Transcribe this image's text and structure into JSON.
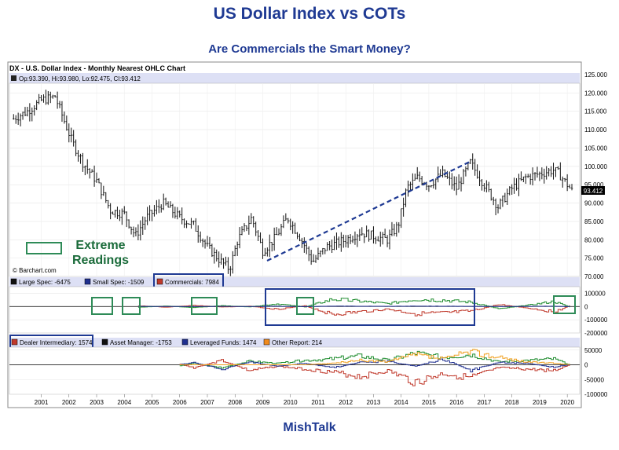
{
  "page": {
    "title": "US Dollar Index vs COTs",
    "subtitle": "Are Commercials the Smart Money?",
    "footer": "MishTalk"
  },
  "chart_data": [
    {
      "type": "ohlc",
      "title": "DX - U.S. Dollar Index - Monthly Nearest OHLC Chart",
      "ohlc_readout": "Op:93.390, Hi:93.980, Lo:92.475, Cl:93.412",
      "last_value_label": "93.412",
      "credit": "© Barchart.com",
      "annotation": "Extreme Readings",
      "x_ticks": [
        "2001",
        "2002",
        "2003",
        "2004",
        "2005",
        "2006",
        "2007",
        "2008",
        "2009",
        "2010",
        "2011",
        "2012",
        "2013",
        "2014",
        "2015",
        "2016",
        "2017",
        "2018",
        "2019",
        "2020"
      ],
      "y_ticks": [
        "125.000",
        "120.000",
        "115.000",
        "110.000",
        "105.000",
        "100.000",
        "95.000",
        "90.000",
        "85.000",
        "80.000",
        "75.000",
        "70.000"
      ],
      "ylim": [
        70,
        125
      ],
      "series": [
        {
          "x": [
            2000.5,
            2001.0,
            2001.5,
            2002.0,
            2002.3,
            2002.6,
            2003.0,
            2003.5,
            2004.0,
            2004.5,
            2004.9,
            2005.3,
            2005.9,
            2006.5,
            2007.0,
            2007.5,
            2008.0,
            2008.3,
            2008.6,
            2009.1,
            2009.5,
            2009.9,
            2010.4,
            2010.9,
            2011.3,
            2011.8,
            2012.5,
            2013.0,
            2013.5,
            2014.0,
            2014.4,
            2014.7,
            2015.1,
            2015.5,
            2016.0,
            2016.5,
            2017.0,
            2017.5,
            2018.0,
            2018.5,
            2019.0,
            2019.5,
            2020.0,
            2020.2,
            2020.5,
            2020.7
          ],
          "close": [
            113,
            115,
            118,
            119,
            113,
            107,
            101,
            96,
            88,
            87,
            81,
            86,
            90,
            86,
            84,
            78,
            74,
            72,
            80,
            86,
            77,
            80,
            86,
            80,
            74,
            78,
            80,
            82,
            81,
            80,
            84,
            94,
            97,
            95,
            98,
            94,
            101,
            95,
            89,
            94,
            97,
            98,
            99,
            98,
            95,
            93
          ]
        }
      ]
    },
    {
      "type": "line",
      "legend": [
        "Large Spec: -6475",
        "Small Spec: -1509",
        "Commercials: 7984"
      ],
      "y_ticks": [
        "100000",
        "0",
        "-100000",
        "-200000"
      ],
      "ylim": [
        -200000,
        150000
      ],
      "x": [
        2005,
        2006,
        2007,
        2008,
        2009,
        2010,
        2011,
        2012,
        2013,
        2014,
        2015,
        2016,
        2017,
        2018,
        2019,
        2020,
        2020.6
      ],
      "series": [
        {
          "values": [
            5000,
            -5000,
            8000,
            -4000,
            2000,
            -20000,
            5000,
            -60000,
            -40000,
            -20000,
            -55000,
            -50000,
            -35000,
            15000,
            -10000,
            -40000,
            8000
          ]
        },
        {
          "values": [
            -5000,
            3000,
            -8000,
            6000,
            -3000,
            20000,
            -4000,
            55000,
            40000,
            22000,
            55000,
            48000,
            33000,
            -15000,
            8000,
            38000,
            -6475
          ]
        },
        {
          "values": [
            1000,
            500,
            -1000,
            1500,
            -500,
            2000,
            -1000,
            3000,
            2000,
            1500,
            2500,
            2000,
            1000,
            -500,
            1000,
            2000,
            -1509
          ]
        }
      ]
    },
    {
      "type": "line",
      "legend": [
        "Dealer Intermediary: 1574",
        "Asset Manager: -1753",
        "Leveraged Funds: 1474",
        "Other Report: 214"
      ],
      "y_ticks": [
        "50000",
        "0",
        "-50000",
        "-100000"
      ],
      "ylim": [
        -100000,
        60000
      ],
      "x": [
        2006.5,
        2007,
        2008,
        2009,
        2010,
        2011,
        2012,
        2013,
        2014,
        2015,
        2016,
        2017,
        2018,
        2019,
        2020,
        2020.6
      ],
      "series": [
        {
          "values": [
            2000,
            -10000,
            15000,
            -20000,
            -5000,
            -15000,
            -25000,
            -40000,
            -20000,
            -60000,
            -30000,
            -45000,
            -10000,
            -15000,
            -20000,
            1574
          ]
        },
        {
          "values": [
            -3000,
            5000,
            -10000,
            12000,
            5000,
            15000,
            20000,
            30000,
            15000,
            40000,
            25000,
            35000,
            10000,
            15000,
            20000,
            -1753
          ]
        },
        {
          "values": [
            1000,
            8000,
            -15000,
            10000,
            -5000,
            5000,
            -10000,
            8000,
            12000,
            -5000,
            20000,
            -20000,
            8000,
            5000,
            -8000,
            1474
          ]
        },
        {
          "values": [
            0,
            0,
            0,
            0,
            0,
            0,
            5000,
            15000,
            10000,
            35000,
            20000,
            45000,
            25000,
            10000,
            5000,
            214
          ]
        }
      ]
    }
  ]
}
